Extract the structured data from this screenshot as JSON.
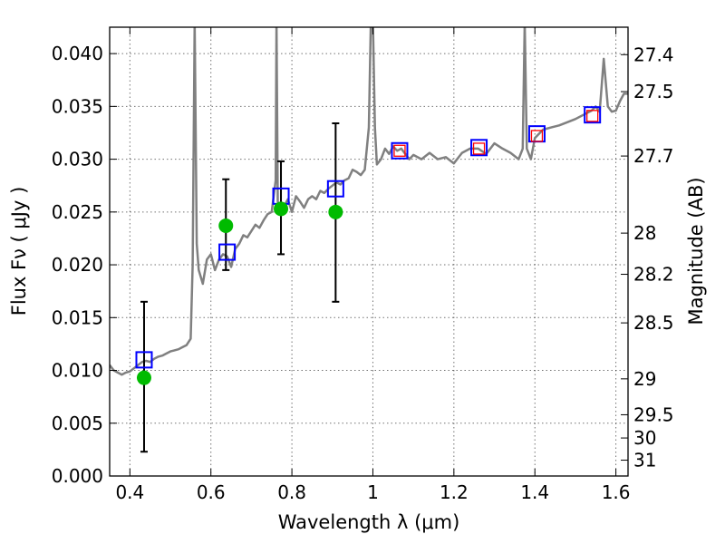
{
  "chart_data": {
    "type": "line",
    "xlabel": "Wavelength  λ (μm)",
    "ylabel": "Flux  Fν  ( μJy )",
    "ylabel2": "Magnitude (AB)",
    "xlim": [
      0.35,
      1.63
    ],
    "ylim": [
      0.0,
      0.0425
    ],
    "grid": true,
    "x_ticks": [
      0.4,
      0.6,
      0.8,
      1.0,
      1.2,
      1.4,
      1.6
    ],
    "x_tick_labels": [
      "0.4",
      "0.6",
      "0.8",
      "1",
      "1.2",
      "1.4",
      "1.6"
    ],
    "y_ticks": [
      0.0,
      0.005,
      0.01,
      0.015,
      0.02,
      0.025,
      0.03,
      0.035,
      0.04
    ],
    "y_tick_labels": [
      "0.000",
      "0.005",
      "0.010",
      "0.015",
      "0.020",
      "0.025",
      "0.030",
      "0.035",
      "0.040"
    ],
    "mag_ticks": [
      {
        "label": "27.4",
        "flux": 0.0399
      },
      {
        "label": "27.5",
        "flux": 0.0364
      },
      {
        "label": "27.7",
        "flux": 0.0303
      },
      {
        "label": "28",
        "flux": 0.023
      },
      {
        "label": "28.2",
        "flux": 0.0191
      },
      {
        "label": "28.5",
        "flux": 0.0145
      },
      {
        "label": "29",
        "flux": 0.0092
      },
      {
        "label": "29.5",
        "flux": 0.0058
      },
      {
        "label": "30",
        "flux": 0.0036
      },
      {
        "label": "31",
        "flux": 0.0015
      }
    ],
    "model_spectrum": {
      "color": "#808080",
      "x": [
        0.35,
        0.36,
        0.37,
        0.38,
        0.39,
        0.4,
        0.41,
        0.42,
        0.43,
        0.44,
        0.45,
        0.46,
        0.47,
        0.48,
        0.49,
        0.5,
        0.51,
        0.52,
        0.53,
        0.54,
        0.55,
        0.555,
        0.56,
        0.565,
        0.57,
        0.58,
        0.59,
        0.6,
        0.61,
        0.62,
        0.63,
        0.64,
        0.65,
        0.66,
        0.67,
        0.68,
        0.69,
        0.7,
        0.71,
        0.72,
        0.73,
        0.74,
        0.75,
        0.76,
        0.762,
        0.765,
        0.77,
        0.78,
        0.79,
        0.8,
        0.81,
        0.82,
        0.83,
        0.84,
        0.85,
        0.86,
        0.87,
        0.88,
        0.89,
        0.9,
        0.91,
        0.92,
        0.93,
        0.94,
        0.95,
        0.96,
        0.97,
        0.98,
        0.99,
        0.995,
        1.0,
        1.005,
        1.01,
        1.02,
        1.03,
        1.04,
        1.05,
        1.06,
        1.07,
        1.08,
        1.09,
        1.1,
        1.12,
        1.14,
        1.16,
        1.18,
        1.2,
        1.22,
        1.24,
        1.26,
        1.28,
        1.3,
        1.32,
        1.34,
        1.36,
        1.37,
        1.375,
        1.38,
        1.39,
        1.4,
        1.42,
        1.44,
        1.46,
        1.48,
        1.5,
        1.52,
        1.54,
        1.55,
        1.56,
        1.57,
        1.58,
        1.59,
        1.6,
        1.61,
        1.62,
        1.63
      ],
      "y": [
        0.0105,
        0.01,
        0.0098,
        0.0096,
        0.0098,
        0.0099,
        0.0102,
        0.0105,
        0.0108,
        0.0109,
        0.0108,
        0.0111,
        0.0113,
        0.0114,
        0.0116,
        0.0118,
        0.0119,
        0.012,
        0.0122,
        0.0124,
        0.013,
        0.02,
        0.043,
        0.022,
        0.0195,
        0.0182,
        0.0205,
        0.021,
        0.0195,
        0.0205,
        0.021,
        0.0208,
        0.0198,
        0.0215,
        0.022,
        0.0228,
        0.0226,
        0.0232,
        0.0238,
        0.0235,
        0.0242,
        0.0248,
        0.025,
        0.028,
        0.043,
        0.026,
        0.0252,
        0.0255,
        0.0262,
        0.025,
        0.0265,
        0.026,
        0.0254,
        0.0262,
        0.0265,
        0.0262,
        0.027,
        0.0268,
        0.0272,
        0.0275,
        0.0278,
        0.0276,
        0.028,
        0.0282,
        0.029,
        0.0288,
        0.0285,
        0.029,
        0.033,
        0.043,
        0.043,
        0.033,
        0.0295,
        0.03,
        0.031,
        0.0305,
        0.0312,
        0.0308,
        0.031,
        0.0305,
        0.03,
        0.0304,
        0.03,
        0.0306,
        0.03,
        0.0302,
        0.0296,
        0.0306,
        0.031,
        0.031,
        0.0305,
        0.0315,
        0.031,
        0.0306,
        0.03,
        0.031,
        0.043,
        0.031,
        0.03,
        0.032,
        0.0328,
        0.033,
        0.0332,
        0.0335,
        0.0338,
        0.0342,
        0.0346,
        0.035,
        0.0345,
        0.0395,
        0.035,
        0.0345,
        0.0346,
        0.0355,
        0.0362,
        0.0362
      ]
    },
    "model_photometry": {
      "marker": "blue-open-square",
      "color": "#0000ff",
      "points": [
        {
          "x": 0.435,
          "y": 0.011
        },
        {
          "x": 0.64,
          "y": 0.0212
        },
        {
          "x": 0.773,
          "y": 0.0265
        },
        {
          "x": 0.908,
          "y": 0.0272
        },
        {
          "x": 1.066,
          "y": 0.0308
        },
        {
          "x": 1.262,
          "y": 0.0311
        },
        {
          "x": 1.405,
          "y": 0.0324
        },
        {
          "x": 1.542,
          "y": 0.0342
        }
      ]
    },
    "observed_ir": {
      "marker": "red-open-square",
      "color": "#ff0000",
      "points": [
        {
          "x": 1.066,
          "y": 0.0308
        },
        {
          "x": 1.262,
          "y": 0.031
        },
        {
          "x": 1.405,
          "y": 0.0322
        },
        {
          "x": 1.542,
          "y": 0.0341
        }
      ]
    },
    "observed_optical": {
      "marker": "green-filled-circle",
      "color": "#00bb00",
      "points": [
        {
          "x": 0.435,
          "y": 0.0093,
          "err_low": 0.0023,
          "err_high": 0.0165
        },
        {
          "x": 0.637,
          "y": 0.0237,
          "err_low": 0.0195,
          "err_high": 0.0281
        },
        {
          "x": 0.773,
          "y": 0.0253,
          "err_low": 0.021,
          "err_high": 0.0298
        },
        {
          "x": 0.908,
          "y": 0.025,
          "err_low": 0.0165,
          "err_high": 0.0334
        }
      ]
    }
  }
}
